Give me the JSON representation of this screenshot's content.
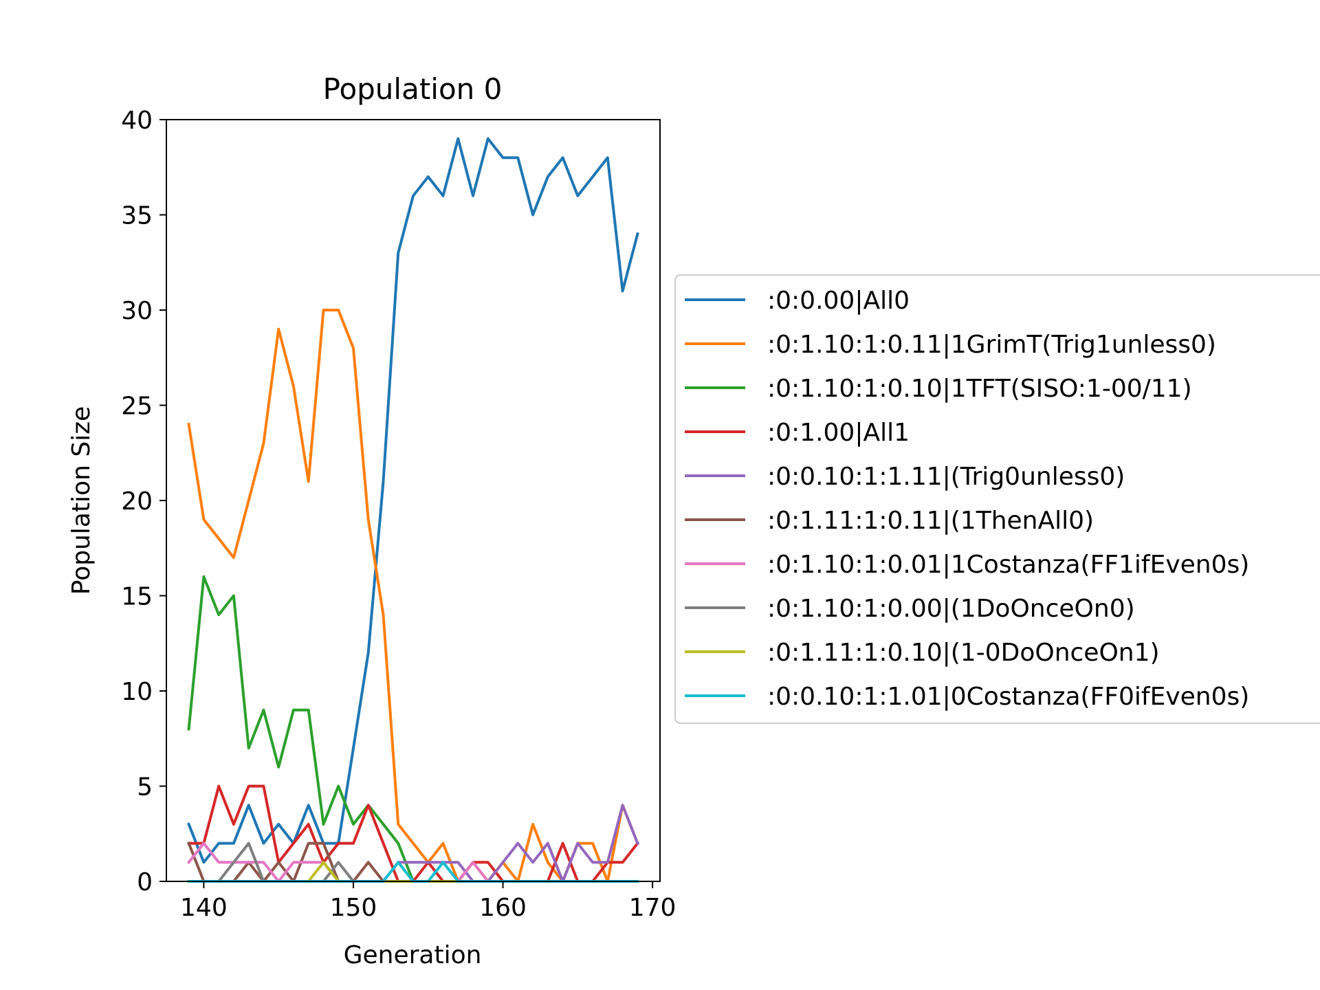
{
  "chart_data": {
    "type": "line",
    "title": "Population 0",
    "xlabel": "Generation",
    "ylabel": "Population Size",
    "xlim": [
      137.5,
      170.5
    ],
    "ylim": [
      0,
      40
    ],
    "xticks": [
      "140",
      "150",
      "160",
      "170"
    ],
    "yticks": [
      "0",
      "5",
      "10",
      "15",
      "20",
      "25",
      "30",
      "35",
      "40"
    ],
    "grid": false,
    "legend_position": "center-right, outside axes",
    "x": [
      139,
      140,
      141,
      142,
      143,
      144,
      145,
      146,
      147,
      148,
      149,
      150,
      151,
      152,
      153,
      154,
      155,
      156,
      157,
      158,
      159,
      160,
      161,
      162,
      163,
      164,
      165,
      166,
      167,
      168,
      169
    ],
    "series": [
      {
        "name": ":0:0.00|All0",
        "color": "#1f77b4",
        "values": [
          3,
          1,
          2,
          2,
          4,
          2,
          3,
          2,
          4,
          2,
          2,
          7,
          12,
          21,
          33,
          36,
          37,
          36,
          39,
          36,
          39,
          38,
          38,
          35,
          37,
          38,
          36,
          37,
          38,
          31,
          34
        ]
      },
      {
        "name": ":0:1.10:1:0.11|1GrimT(Trig1unless0)",
        "color": "#ff7f0e",
        "values": [
          24,
          19,
          18,
          17,
          20,
          23,
          29,
          26,
          21,
          30,
          30,
          28,
          19,
          14,
          3,
          2,
          1,
          2,
          0,
          1,
          0,
          1,
          0,
          3,
          1,
          0,
          2,
          2,
          0,
          4,
          2
        ]
      },
      {
        "name": ":0:1.10:1:0.10|1TFT(SISO:1-00/11)",
        "color": "#2ca02c",
        "values": [
          8,
          16,
          14,
          15,
          7,
          9,
          6,
          9,
          9,
          3,
          5,
          3,
          4,
          3,
          2,
          0,
          0,
          0,
          0,
          0,
          0,
          0,
          0,
          0,
          0,
          0,
          0,
          0,
          0,
          0,
          0
        ]
      },
      {
        "name": ":0:1.00|All1",
        "color": "#d62728",
        "values": [
          2,
          2,
          5,
          3,
          5,
          5,
          1,
          2,
          3,
          1,
          2,
          2,
          4,
          2,
          0,
          0,
          1,
          0,
          0,
          1,
          1,
          0,
          0,
          0,
          0,
          2,
          0,
          0,
          1,
          1,
          2
        ]
      },
      {
        "name": ":0:0.10:1:1.11|(Trig0unless0)",
        "color": "#9467bd",
        "values": [
          0,
          0,
          0,
          0,
          0,
          0,
          0,
          0,
          0,
          0,
          0,
          0,
          0,
          0,
          1,
          1,
          1,
          1,
          1,
          0,
          0,
          1,
          2,
          1,
          2,
          0,
          2,
          1,
          1,
          4,
          2
        ]
      },
      {
        "name": ":0:1.11:1:0.11|(1ThenAll0)",
        "color": "#8c564b",
        "values": [
          2,
          0,
          0,
          0,
          1,
          0,
          1,
          0,
          2,
          2,
          0,
          0,
          1,
          0,
          0,
          0,
          0,
          0,
          0,
          0,
          0,
          0,
          0,
          0,
          0,
          0,
          0,
          0,
          0,
          0,
          0
        ]
      },
      {
        "name": ":0:1.10:1:0.01|1Costanza(FF1ifEven0s)",
        "color": "#e377c2",
        "values": [
          1,
          2,
          1,
          1,
          1,
          1,
          0,
          1,
          1,
          1,
          0,
          0,
          0,
          0,
          0,
          0,
          0,
          0,
          0,
          1,
          0,
          0,
          0,
          0,
          0,
          0,
          0,
          0,
          0,
          0,
          0
        ]
      },
      {
        "name": ":0:1.10:1:0.00|(1DoOnceOn0)",
        "color": "#7f7f7f",
        "values": [
          0,
          0,
          0,
          1,
          2,
          0,
          0,
          0,
          0,
          0,
          1,
          0,
          0,
          0,
          0,
          0,
          0,
          0,
          0,
          0,
          0,
          0,
          0,
          0,
          0,
          0,
          0,
          0,
          0,
          0,
          0
        ]
      },
      {
        "name": ":0:1.11:1:0.10|(1-0DoOnceOn1)",
        "color": "#bcbd22",
        "values": [
          0,
          0,
          0,
          0,
          0,
          0,
          0,
          0,
          0,
          1,
          0,
          0,
          0,
          0,
          0,
          0,
          0,
          0,
          0,
          0,
          0,
          0,
          0,
          0,
          0,
          0,
          0,
          0,
          0,
          0,
          0
        ]
      },
      {
        "name": ":0:0.10:1:1.01|0Costanza(FF0ifEven0s)",
        "color": "#17becf",
        "values": [
          0,
          0,
          0,
          0,
          0,
          0,
          0,
          0,
          0,
          0,
          0,
          0,
          0,
          0,
          1,
          0,
          0,
          1,
          0,
          0,
          0,
          0,
          0,
          0,
          0,
          0,
          0,
          0,
          0,
          0,
          0
        ]
      }
    ]
  }
}
